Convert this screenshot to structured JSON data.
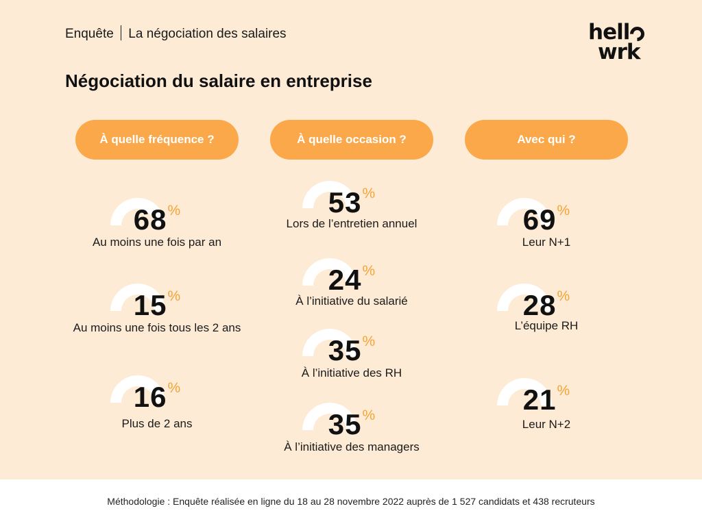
{
  "header": {
    "survey": "Enquête",
    "subject": "La négociation des salaires"
  },
  "logo": {
    "line1_start": "hell",
    "line2": "wrk"
  },
  "title": "Négociation du salaire en entreprise",
  "chart_data": {
    "type": "gauge",
    "title": "Négociation du salaire en entreprise",
    "unit": "%",
    "groups": [
      {
        "heading": "À quelle fréquence ?",
        "items": [
          {
            "label": "Au moins une fois par an",
            "value": 68
          },
          {
            "label": "Au moins une fois tous les 2 ans",
            "value": 15
          },
          {
            "label": "Plus de 2 ans",
            "value": 16
          }
        ]
      },
      {
        "heading": "À quelle occasion ?",
        "items": [
          {
            "label": "Lors de l’entretien annuel",
            "value": 53
          },
          {
            "label": "À l’initiative du salarié",
            "value": 24
          },
          {
            "label": "À l’initiative des RH",
            "value": 35
          },
          {
            "label": "À l’initiative des managers",
            "value": 35
          }
        ]
      },
      {
        "heading": "Avec qui ?",
        "items": [
          {
            "label": "Leur N+1",
            "value": 69
          },
          {
            "label": "L’équipe RH",
            "value": 28
          },
          {
            "label": "Leur N+2",
            "value": 21
          }
        ]
      }
    ]
  },
  "colors": {
    "background": "#fdebd5",
    "pill": "#fba84a",
    "gauge_track": "#ffffff",
    "percent_sign": "#f3a437",
    "text": "#111111"
  },
  "methodology": "Méthodologie : Enquête réalisée en ligne du 18 au 28 novembre 2022 auprès de 1 527 candidats et 438 recruteurs"
}
